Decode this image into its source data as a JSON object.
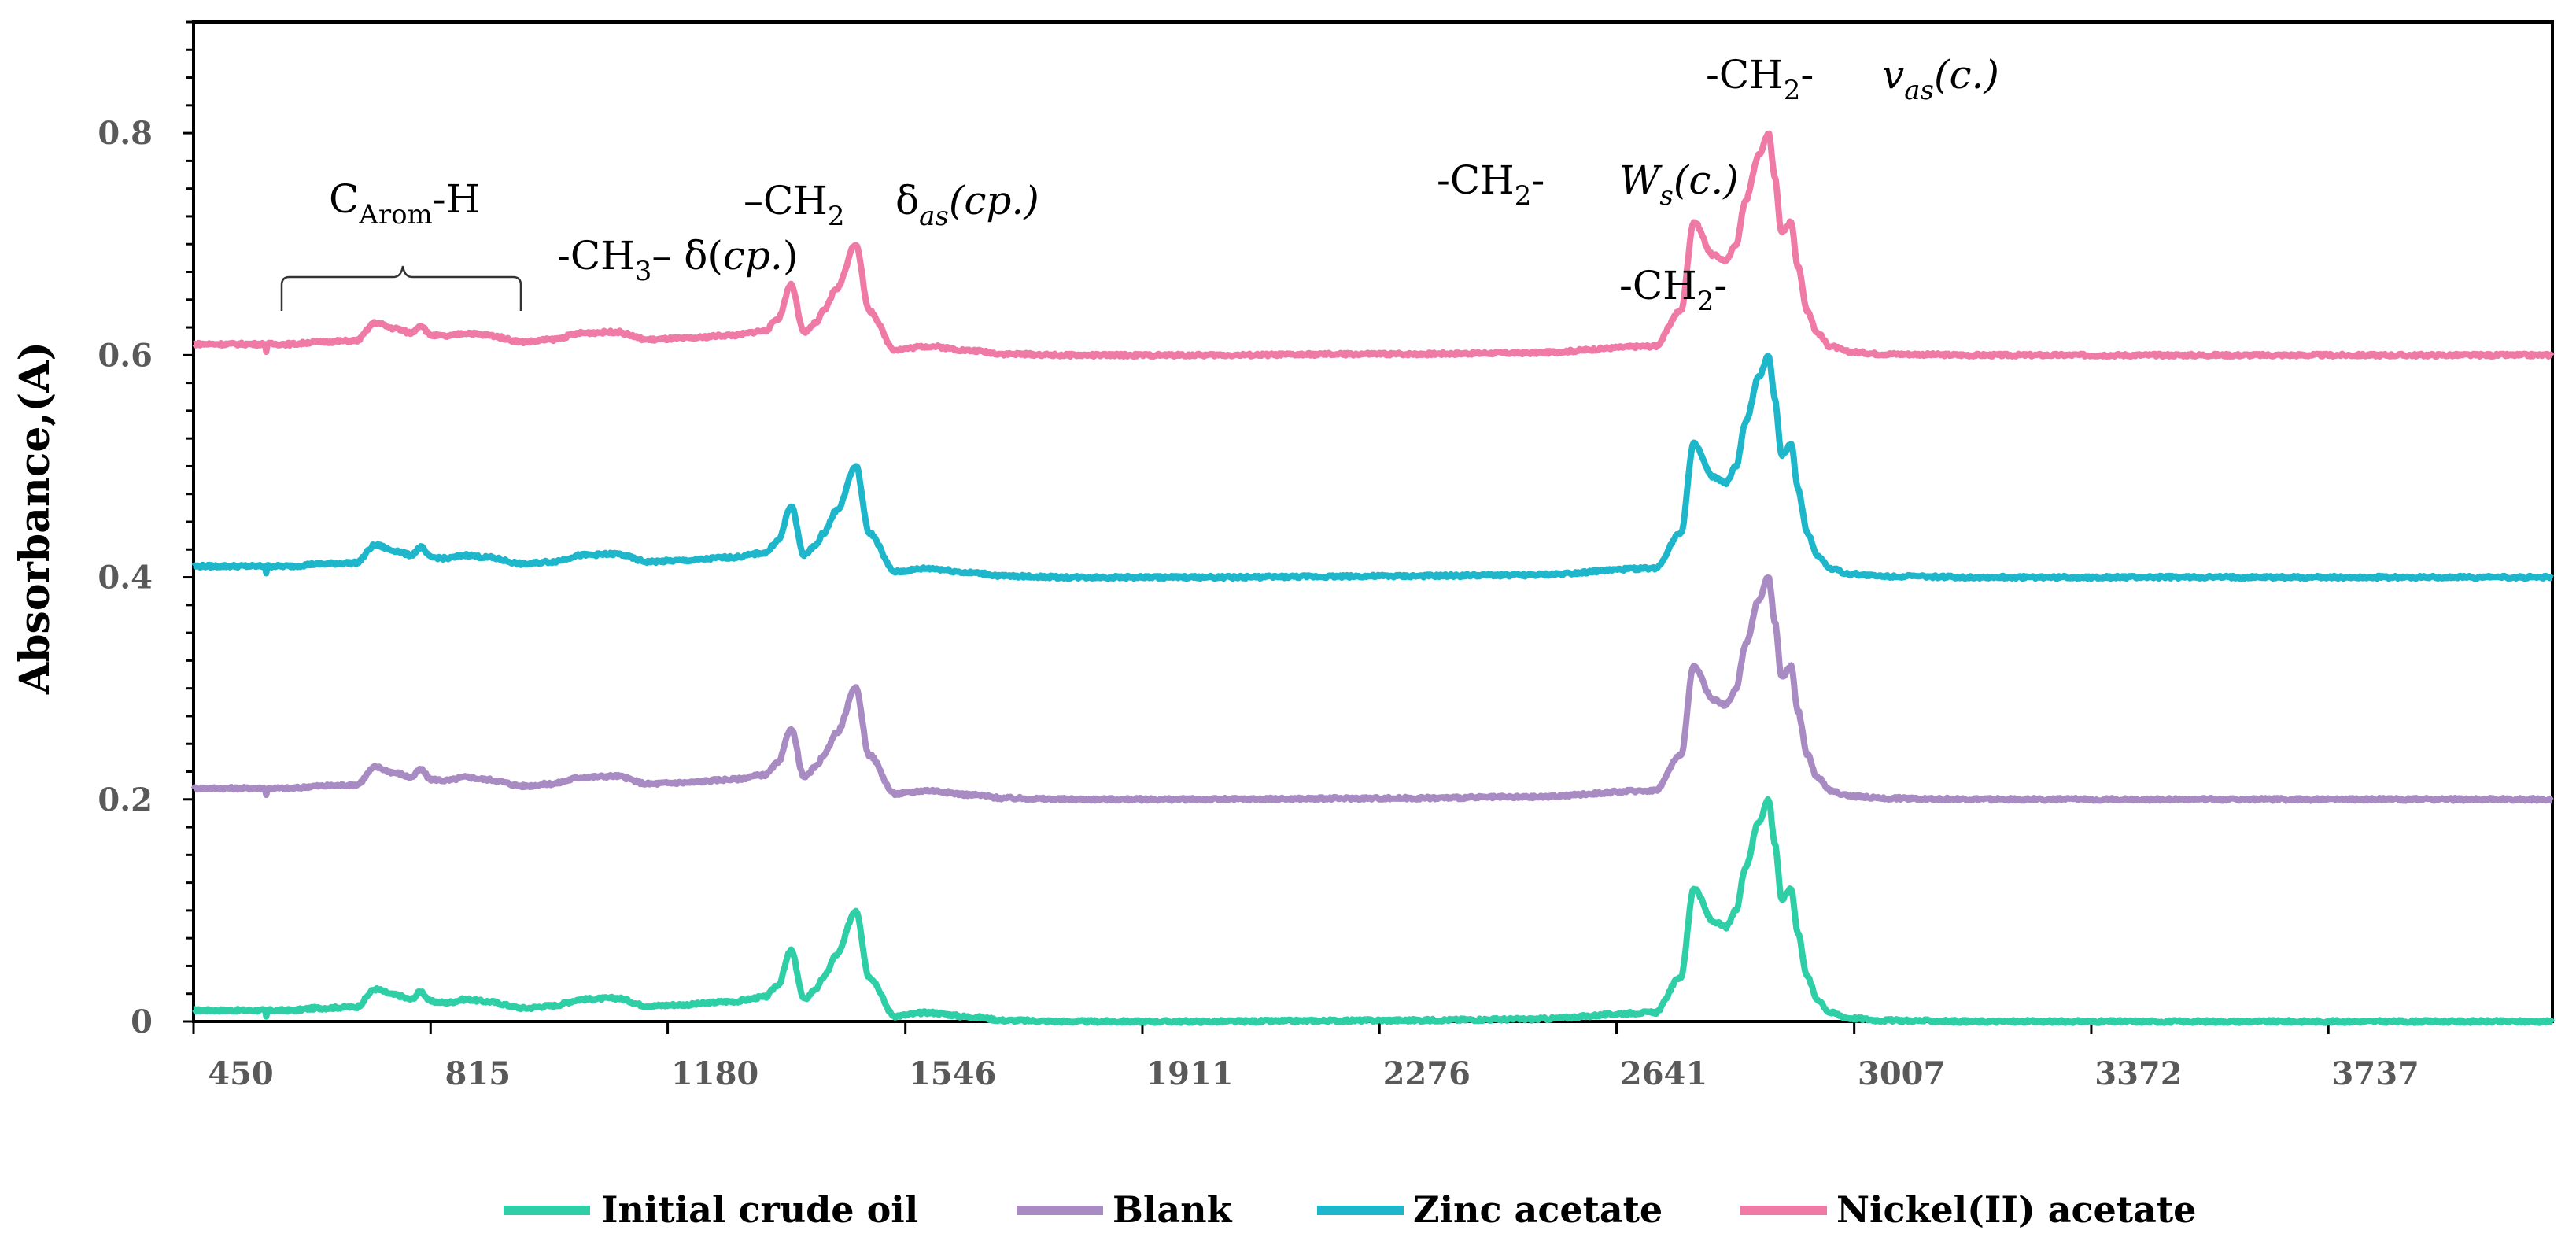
{
  "chart_data": {
    "type": "line",
    "title": "",
    "xlabel": "",
    "ylabel": "Absorbance,(A)",
    "xlim": [
      450,
      4082
    ],
    "ylim": [
      0,
      0.9
    ],
    "xticks": [
      450,
      815,
      1180,
      1546,
      1911,
      2276,
      2641,
      3007,
      3372,
      3737
    ],
    "x_tick_labels": [
      "450",
      "815",
      "1180",
      "1546",
      "1911",
      "2276",
      "2641",
      "3007",
      "3372",
      "3737"
    ],
    "yticks": [
      0,
      0.2,
      0.4,
      0.6,
      0.8
    ],
    "y_tick_labels": [
      "0",
      "0.2",
      "0.4",
      "0.6",
      "0.8"
    ],
    "legend_position": "bottom",
    "series": [
      {
        "name": "Initial crude oil",
        "color": "#2ECFA6",
        "offset": 0.0
      },
      {
        "name": "Blank",
        "color": "#A98BC4",
        "offset": 0.2
      },
      {
        "name": "Zinc acetate",
        "color": "#1EB6CA",
        "offset": 0.4
      },
      {
        "name": "Nickel(II) acetate",
        "color": "#EE7AA5",
        "offset": 0.6
      }
    ],
    "spectrum_points": {
      "x": [
        450,
        600,
        640,
        700,
        730,
        760,
        785,
        800,
        815,
        840,
        870,
        900,
        960,
        1000,
        1050,
        1100,
        1150,
        1200,
        1280,
        1330,
        1350,
        1370,
        1390,
        1410,
        1420,
        1440,
        1470,
        1490,
        1530,
        1580,
        1650,
        1700,
        1800,
        2000,
        2300,
        2500,
        2700,
        2740,
        2760,
        2790,
        2810,
        2825,
        2840,
        2860,
        2875,
        2885,
        2895,
        2910,
        2920,
        2935,
        2950,
        2970,
        3000,
        3050,
        3200,
        3500,
        4082
      ],
      "y": [
        0.01,
        0.01,
        0.012,
        0.013,
        0.029,
        0.024,
        0.02,
        0.027,
        0.018,
        0.017,
        0.02,
        0.018,
        0.012,
        0.014,
        0.02,
        0.021,
        0.014,
        0.015,
        0.018,
        0.022,
        0.033,
        0.064,
        0.02,
        0.03,
        0.04,
        0.06,
        0.1,
        0.04,
        0.005,
        0.008,
        0.004,
        0.001,
        0.0,
        0.0,
        0.001,
        0.002,
        0.008,
        0.04,
        0.12,
        0.09,
        0.085,
        0.1,
        0.14,
        0.18,
        0.2,
        0.16,
        0.11,
        0.12,
        0.08,
        0.04,
        0.02,
        0.008,
        0.003,
        0.001,
        0.0,
        0.0,
        0.0
      ]
    },
    "annotations": [
      {
        "main": "C",
        "sub": "Arom",
        "tail": "-H",
        "x": 450,
        "y": 0.74
      },
      {
        "main": "-CH",
        "sub": "3",
        "tail": "– δ(",
        "ital": "cp.",
        "close": ")"
      },
      {
        "main": "–CH",
        "sub": "2",
        "tail": "",
        "extra": "δ",
        "extra_sub": "as",
        "ital": "(cp.)"
      },
      {
        "main": "-CH",
        "sub": "2",
        "tail": "-",
        "extra": "W",
        "extra_sub": "s",
        "ital": "(c.)"
      },
      {
        "main": "-CH",
        "sub": "2",
        "tail": "-"
      },
      {
        "main": "-CH",
        "sub": "2",
        "tail": "-",
        "extra": "v",
        "extra_sub": "as",
        "ital": "(c.)"
      }
    ]
  }
}
